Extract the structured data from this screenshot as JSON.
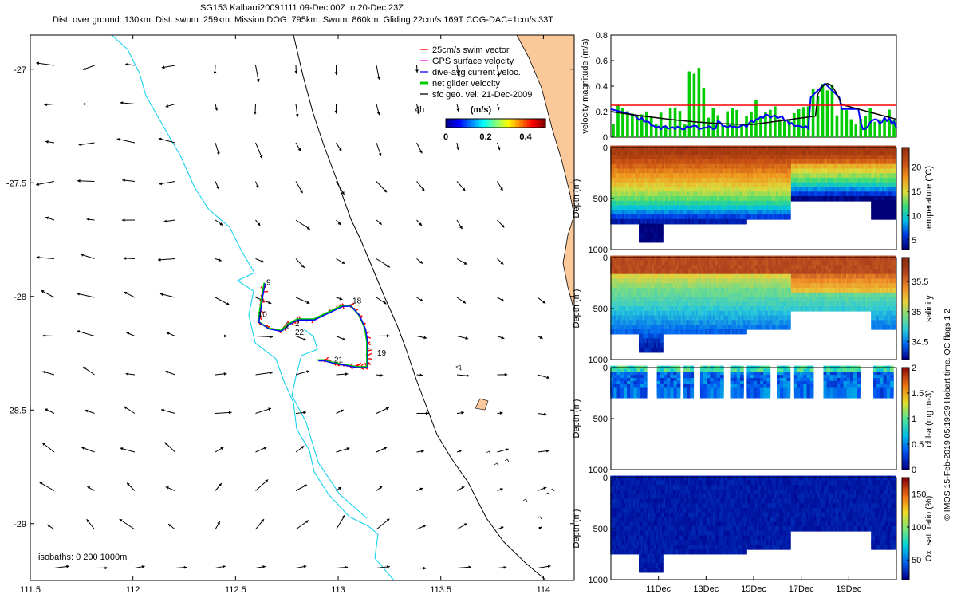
{
  "title": {
    "line1": "SG153 Kalbarri20091111 09-Dec 00Z to 20-Dec 23Z.",
    "line2": "Dist. over ground: 130km. Dist. swum: 259km. Mission DOG: 795km. Swum: 860km. Gliding 22cm/s 169T COG-DAC=1cm/s 33T"
  },
  "side_credit": "© IMOS 15-Feb-2019 05:19:39 Hobart time. QC flags 1  2",
  "colors": {
    "land": "#fbc89a",
    "isobath_200": "#14d2f0",
    "isobath_1000": "#000000",
    "swim_vector": "#ff0000",
    "gps_velocity": "#ff00ff",
    "dive_avg": "#0000ff",
    "net_glider": "#00cc00",
    "geo_vel": "#000000",
    "speed_ref_line": "#ff0000"
  },
  "chart_data": [
    {
      "type": "map",
      "xlim": [
        111.5,
        114.15
      ],
      "ylim": [
        -29.25,
        -26.85
      ],
      "xticks": [
        "111.5",
        "112",
        "112.5",
        "113",
        "113.5",
        "114"
      ],
      "xtick_values": [
        111.5,
        112,
        112.5,
        113,
        113.5,
        114
      ],
      "yticks": [
        "-27",
        "-27.5",
        "-28",
        "-28.5",
        "-29"
      ],
      "ytick_values": [
        -27,
        -27.5,
        -28,
        -28.5,
        -29
      ],
      "legend": [
        {
          "label": "25cm/s swim vector",
          "color": "#ff0000"
        },
        {
          "label": "GPS surface velocity",
          "color": "#ff00ff"
        },
        {
          "label": "dive-avg current veloc.",
          "color": "#0000ff"
        },
        {
          "label": "net glider velocity",
          "color": "#00cc00"
        },
        {
          "label": "sfc geo. vel. 21-Dec-2009",
          "color": "#000000"
        }
      ],
      "legend_extra": "4h",
      "colorbar": {
        "label": "(m/s)",
        "ticks": [
          "0",
          "0.2",
          "0.4"
        ],
        "range": [
          0,
          0.5
        ]
      },
      "isobath_note": "isobaths: 0   200  1000m",
      "track_labels": [
        {
          "text": "9",
          "lon": 112.65,
          "lat": -27.95
        },
        {
          "text": "10",
          "lon": 112.61,
          "lat": -28.09
        },
        {
          "text": "1",
          "lon": 112.74,
          "lat": -28.14
        },
        {
          "text": "2",
          "lon": 112.79,
          "lat": -28.13
        },
        {
          "text": "22",
          "lon": 112.79,
          "lat": -28.17
        },
        {
          "text": "18",
          "lon": 113.07,
          "lat": -28.03
        },
        {
          "text": "19",
          "lon": 113.19,
          "lat": -28.26
        },
        {
          "text": "21",
          "lon": 112.98,
          "lat": -28.29
        }
      ],
      "track": [
        [
          112.64,
          -27.94
        ],
        [
          112.63,
          -27.99
        ],
        [
          112.62,
          -28.05
        ],
        [
          112.61,
          -28.11
        ],
        [
          112.66,
          -28.14
        ],
        [
          112.72,
          -28.15
        ],
        [
          112.76,
          -28.12
        ],
        [
          112.8,
          -28.1
        ],
        [
          112.88,
          -28.1
        ],
        [
          112.95,
          -28.07
        ],
        [
          113.02,
          -28.04
        ],
        [
          113.06,
          -28.04
        ],
        [
          113.1,
          -28.08
        ],
        [
          113.13,
          -28.14
        ],
        [
          113.14,
          -28.2
        ],
        [
          113.14,
          -28.25
        ],
        [
          113.14,
          -28.31
        ],
        [
          113.09,
          -28.31
        ],
        [
          113.03,
          -28.3
        ],
        [
          112.97,
          -28.29
        ],
        [
          112.93,
          -28.28
        ],
        [
          112.9,
          -28.28
        ]
      ]
    },
    {
      "type": "line",
      "ylabel": "velocity magnitude (m/s)",
      "ylim": [
        0,
        0.8
      ],
      "yticks": [
        "0",
        "0.2",
        "0.4",
        "0.6",
        "0.8"
      ],
      "reference_value": 0.25,
      "series": [],
      "note": "green bars: net glider velocity; blue: dive-avg current; black: smoothed"
    },
    {
      "type": "heatmap",
      "ylabel": "Depth (m)",
      "ylim": [
        0,
        1000
      ],
      "yticks": [
        "0",
        "500",
        "1000"
      ],
      "colorbar_label": "temperature (°C)",
      "colorbar_ticks": [
        "5",
        "10",
        "15",
        "20"
      ]
    },
    {
      "type": "heatmap",
      "ylabel": "Depth (m)",
      "ylim": [
        0,
        1000
      ],
      "yticks": [
        "0",
        "500",
        "1000"
      ],
      "colorbar_label": "salinity",
      "colorbar_ticks": [
        "34.5",
        "35",
        "35.5"
      ]
    },
    {
      "type": "heatmap",
      "ylabel": "Depth (m)",
      "ylim": [
        0,
        1000
      ],
      "yticks": [
        "0",
        "500",
        "1000"
      ],
      "colorbar_label": "chl-a (mg m-3)",
      "colorbar_ticks": [
        "0",
        "0.5",
        "1",
        "1.5",
        "2"
      ]
    },
    {
      "type": "heatmap",
      "ylabel": "Depth (m)",
      "ylim": [
        0,
        1000
      ],
      "yticks": [
        "0",
        "500",
        "1000"
      ],
      "colorbar_label": "Ox. sat. ratio (%)",
      "colorbar_ticks": [
        "50",
        "100",
        "150"
      ],
      "xticks": [
        "11Dec",
        "13Dec",
        "15Dec",
        "17Dec",
        "19Dec"
      ]
    }
  ]
}
